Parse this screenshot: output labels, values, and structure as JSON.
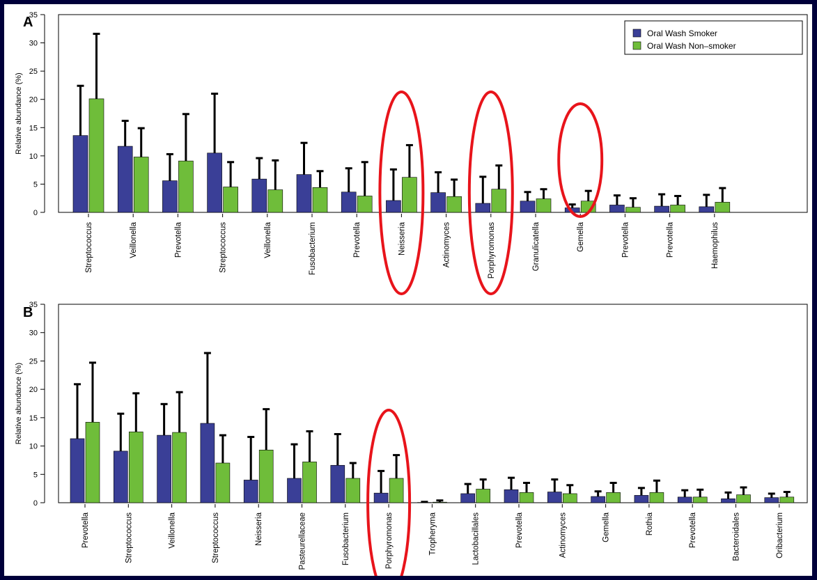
{
  "colors": {
    "smoker": "#3a3f97",
    "nonsmoker": "#6fbd3a",
    "error": "#000000",
    "highlight": "#e8141b",
    "border": "#00003a"
  },
  "legend": {
    "smoker": "Oral Wash Smoker",
    "nonsmoker": "Oral Wash Non–smoker"
  },
  "chart_data": [
    {
      "type": "bar",
      "panel_label": "A",
      "ylabel": "Relative abundance (%)",
      "ylim": [
        0,
        35
      ],
      "yticks": [
        "0",
        "5",
        "10",
        "15",
        "20",
        "25",
        "30",
        "35"
      ],
      "categories": [
        "Streptococcus",
        "Veillonella",
        "Prevotella",
        "Streptococcus",
        "Veillonella",
        "Fusobacterium",
        "Prevotella",
        "Neisseria",
        "Actinomyces",
        "Porphyromonas",
        "Granulicatella",
        "Gemella",
        "Prevotella",
        "Prevotella",
        "Haemophilus"
      ],
      "series": [
        {
          "name": "Oral Wash Smoker",
          "values": [
            13.6,
            11.7,
            5.6,
            10.5,
            5.9,
            6.7,
            3.6,
            2.1,
            3.5,
            1.6,
            2.0,
            0.8,
            1.3,
            1.1,
            1.0
          ],
          "error": [
            22.4,
            16.2,
            10.3,
            21.0,
            9.6,
            12.3,
            7.8,
            7.6,
            7.1,
            6.3,
            3.6,
            1.4,
            3.0,
            3.2,
            3.1
          ]
        },
        {
          "name": "Oral Wash Non–smoker",
          "values": [
            20.1,
            9.8,
            9.1,
            4.5,
            4.0,
            4.4,
            2.9,
            6.2,
            2.8,
            4.1,
            2.4,
            2.0,
            0.9,
            1.3,
            1.8
          ],
          "error": [
            31.6,
            14.9,
            17.4,
            8.9,
            9.2,
            7.3,
            8.9,
            11.9,
            5.8,
            8.3,
            4.1,
            3.8,
            2.5,
            2.9,
            4.3
          ]
        }
      ],
      "highlighted": [
        "Neisseria",
        "Porphyromonas",
        "Gemella"
      ],
      "legend_position": "top-right",
      "grid": false
    },
    {
      "type": "bar",
      "panel_label": "B",
      "ylabel": "Relative abundance (%)",
      "ylim": [
        0,
        35
      ],
      "yticks": [
        "0",
        "5",
        "10",
        "15",
        "20",
        "25",
        "30",
        "35"
      ],
      "categories": [
        "Prevotella",
        "Streptococcus",
        "Veillonella",
        "Streptococcus",
        "Neisseria",
        "Pasteurellaceae",
        "Fusobacterium",
        "Porphyromonas",
        "Tropheryma",
        "Lactobacillales",
        "Prevotella",
        "Actinomyces",
        "Gemella",
        "Rothia",
        "Prevotella",
        "Bacteroidales",
        "Oribacterium"
      ],
      "series": [
        {
          "name": "Oral Wash Smoker",
          "values": [
            11.3,
            9.1,
            11.9,
            14.0,
            4.0,
            4.3,
            6.6,
            1.7,
            0.05,
            1.6,
            2.3,
            1.9,
            1.1,
            1.3,
            1.0,
            0.7,
            0.9
          ],
          "error": [
            20.9,
            15.7,
            17.4,
            26.4,
            11.6,
            10.3,
            12.1,
            5.6,
            0.15,
            3.3,
            4.4,
            4.1,
            2.0,
            2.6,
            2.2,
            1.8,
            1.6
          ]
        },
        {
          "name": "Oral Wash Non–smoker",
          "values": [
            14.2,
            12.5,
            12.4,
            7.0,
            9.3,
            7.2,
            4.3,
            4.3,
            0.1,
            2.4,
            1.8,
            1.6,
            1.8,
            1.8,
            1.0,
            1.4,
            1.0
          ],
          "error": [
            24.7,
            19.3,
            19.5,
            11.9,
            16.5,
            12.6,
            7.0,
            8.4,
            0.4,
            4.1,
            3.5,
            3.1,
            3.5,
            3.9,
            2.3,
            2.7,
            1.9
          ]
        }
      ],
      "highlighted": [
        "Porphyromonas"
      ],
      "grid": false
    }
  ]
}
